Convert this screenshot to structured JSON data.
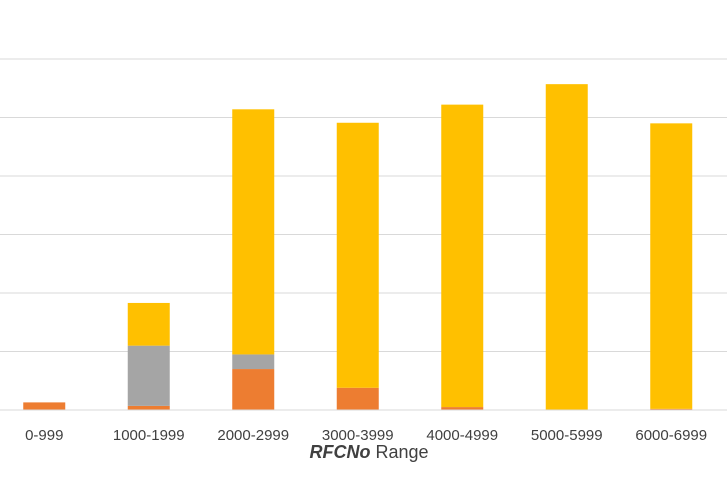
{
  "chart_data": {
    "type": "bar",
    "stacked": true,
    "categories": [
      "0-999",
      "1000-1999",
      "2000-2999",
      "3000-3999",
      "4000-4999",
      "5000-5999",
      "6000-6999"
    ],
    "series": [
      {
        "color": "#ED7D31",
        "values": [
          0.13,
          0.07,
          0.7,
          0.38,
          0.05,
          0.0,
          0.02
        ]
      },
      {
        "color": "#A5A5A5",
        "values": [
          0.0,
          1.03,
          0.25,
          0.0,
          0.0,
          0.0,
          0.0
        ]
      },
      {
        "color": "#FFC000",
        "values": [
          0.0,
          0.73,
          4.19,
          4.53,
          5.17,
          5.57,
          4.88
        ]
      }
    ],
    "title": "",
    "xlabel_emphasis": "RFCNo",
    "xlabel_rest": " Range",
    "ylabel": "",
    "ylim": [
      0,
      6
    ],
    "y_gridlines": [
      0,
      1,
      2,
      3,
      4,
      5,
      6
    ],
    "grid": true,
    "legend": "none",
    "gridline_color": "#D9D9D9"
  }
}
